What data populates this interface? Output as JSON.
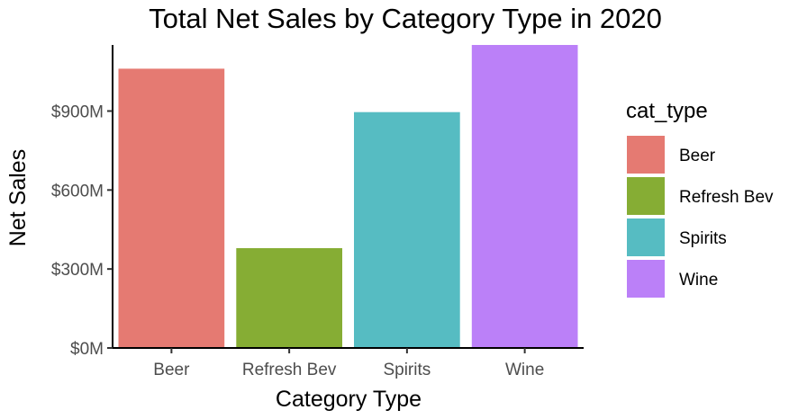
{
  "chart_data": {
    "type": "bar",
    "title": "Total Net Sales by Category Type in 2020",
    "xlabel": "Category Type",
    "ylabel": "Net Sales",
    "categories": [
      "Beer",
      "Refresh Bev",
      "Spirits",
      "Wine"
    ],
    "values": [
      1061,
      379,
      896,
      1151
    ],
    "value_unit": "$M",
    "colors": [
      "#e57a72",
      "#86ad34",
      "#56bcc2",
      "#bb80f8"
    ],
    "yticks": [
      0,
      300,
      600,
      900
    ],
    "ytick_labels": [
      "$0M",
      "$300M",
      "$600M",
      "$900M"
    ],
    "ylim": [
      0,
      1151
    ],
    "grid": false,
    "legend": {
      "title": "cat_type",
      "position": "right",
      "entries": [
        "Beer",
        "Refresh Bev",
        "Spirits",
        "Wine"
      ]
    }
  }
}
